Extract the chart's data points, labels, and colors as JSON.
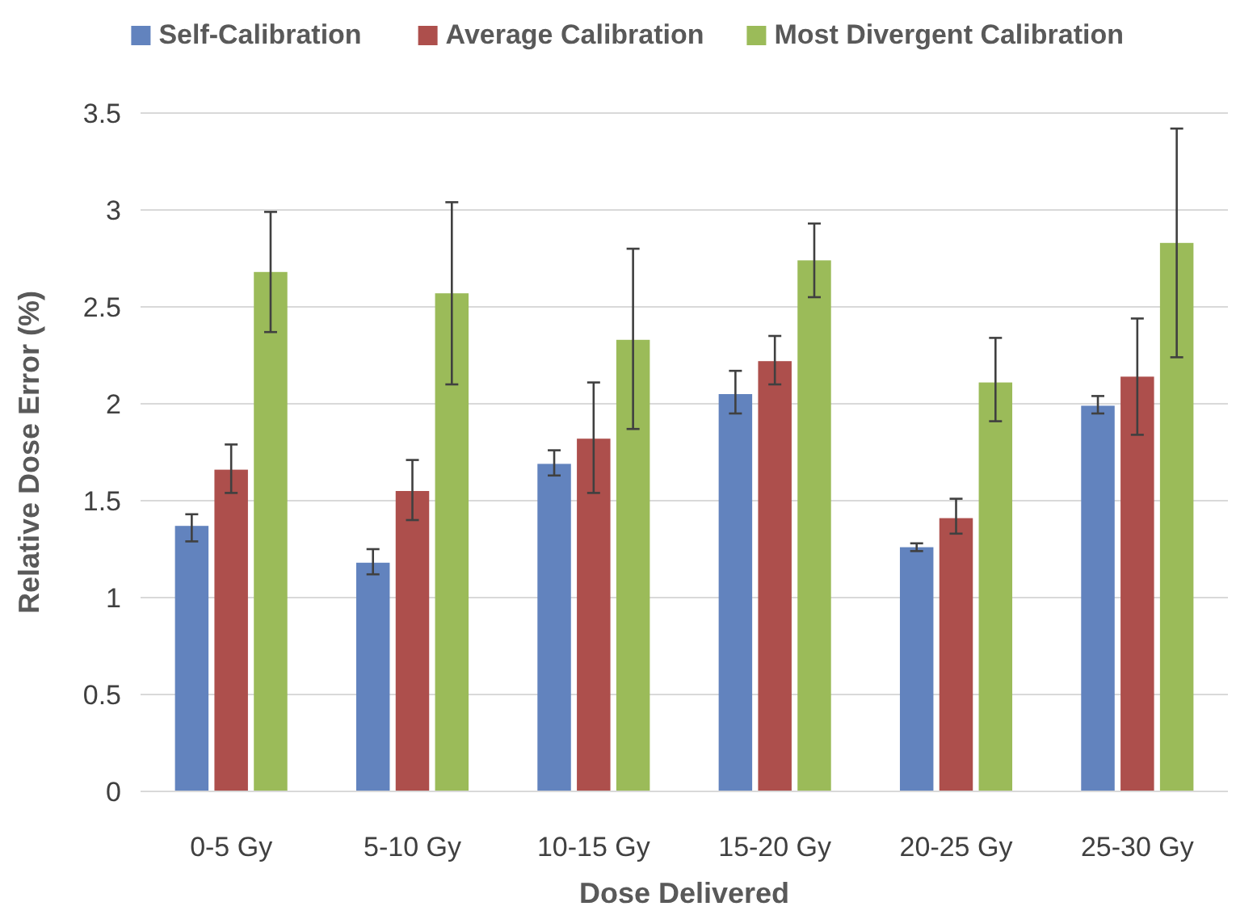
{
  "chart_data": {
    "type": "bar",
    "xlabel": "Dose Delivered",
    "ylabel": "Relative Dose Error (%)",
    "categories": [
      "0-5 Gy",
      "5-10 Gy",
      "10-15 Gy",
      "15-20 Gy",
      "20-25 Gy",
      "25-30 Gy"
    ],
    "series": [
      {
        "name": "Self-Calibration",
        "color": "#6283be",
        "values": [
          1.37,
          1.18,
          1.69,
          2.05,
          1.26,
          1.99
        ],
        "errors": [
          [
            1.29,
            1.43
          ],
          [
            1.12,
            1.25
          ],
          [
            1.63,
            1.76
          ],
          [
            1.95,
            2.17
          ],
          [
            1.24,
            1.28
          ],
          [
            1.95,
            2.04
          ]
        ]
      },
      {
        "name": "Average Calibration",
        "color": "#ad4f4c",
        "values": [
          1.66,
          1.55,
          1.82,
          2.22,
          1.41,
          2.14
        ],
        "errors": [
          [
            1.54,
            1.79
          ],
          [
            1.4,
            1.71
          ],
          [
            1.54,
            2.11
          ],
          [
            2.1,
            2.35
          ],
          [
            1.33,
            1.51
          ],
          [
            1.84,
            2.44
          ]
        ]
      },
      {
        "name": "Most Divergent Calibration",
        "color": "#9bbb59",
        "values": [
          2.68,
          2.57,
          2.33,
          2.74,
          2.11,
          2.83
        ],
        "errors": [
          [
            2.37,
            2.99
          ],
          [
            2.1,
            3.04
          ],
          [
            1.87,
            2.8
          ],
          [
            2.55,
            2.93
          ],
          [
            1.91,
            2.34
          ],
          [
            2.24,
            3.42
          ]
        ]
      }
    ],
    "ylim": [
      0,
      3.5
    ],
    "yticks": [
      0,
      0.5,
      1,
      1.5,
      2,
      2.5,
      3,
      3.5
    ],
    "grid": "y",
    "legend": "top"
  }
}
